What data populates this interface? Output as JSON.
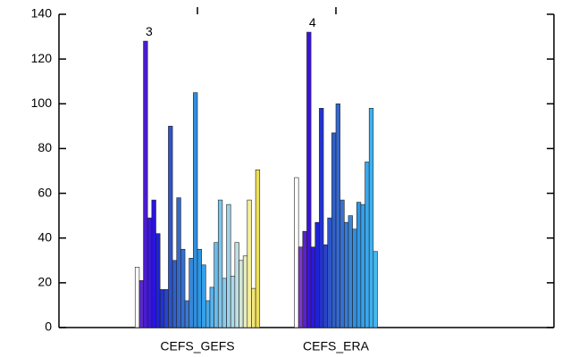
{
  "chart_data": {
    "type": "grouped-bar",
    "categories": [
      "CEFS_GEFS",
      "CEFS_ERA"
    ],
    "annotations": [
      "3",
      "4"
    ],
    "values": [
      [
        27,
        21,
        128,
        49,
        57,
        42,
        17,
        17,
        90,
        30,
        58,
        35,
        12,
        31,
        105,
        35,
        28,
        12,
        18,
        38,
        57,
        22,
        55,
        23,
        38,
        30,
        32,
        57,
        17.5,
        70.5
      ],
      [
        67,
        36,
        43,
        132,
        36,
        47,
        98,
        37,
        49,
        87,
        100,
        57,
        47,
        50,
        44,
        56,
        55,
        74,
        98,
        34
      ]
    ],
    "colors": [
      [
        "#ffffff",
        "#5a2bc8",
        "#4a1ccf",
        "#3a18d8",
        "#2a14e0",
        "#1f22d8",
        "#2233d0",
        "#2a44cc",
        "#2e55c8",
        "#3060c8",
        "#3468cc",
        "#3570cf",
        "#3a7ad2",
        "#3a86d8",
        "#2f8fe0",
        "#2e97e4",
        "#35a0e8",
        "#45a9ea",
        "#58b3ec",
        "#6cbce9",
        "#7fc4ea",
        "#8ccbea",
        "#9dd1e8",
        "#aed8e6",
        "#bfdfe3",
        "#d3e6d7",
        "#e8ecc0",
        "#f5ef9a",
        "#f3e77a",
        "#eedf5a"
      ],
      [
        "#ffffff",
        "#7a3ac8",
        "#5a20d0",
        "#3a14dc",
        "#2a18e0",
        "#1f22d8",
        "#2233d0",
        "#2a44cc",
        "#2e55c8",
        "#3060c8",
        "#3468cc",
        "#3570cf",
        "#3a7ad2",
        "#3a86d8",
        "#2f8fe0",
        "#2e97e4",
        "#35a0e8",
        "#3ba8ec",
        "#3fb0ee",
        "#45b8f0"
      ]
    ],
    "ylim": [
      0,
      140
    ],
    "yticks": [
      0,
      20,
      40,
      60,
      80,
      100,
      120,
      140
    ]
  }
}
